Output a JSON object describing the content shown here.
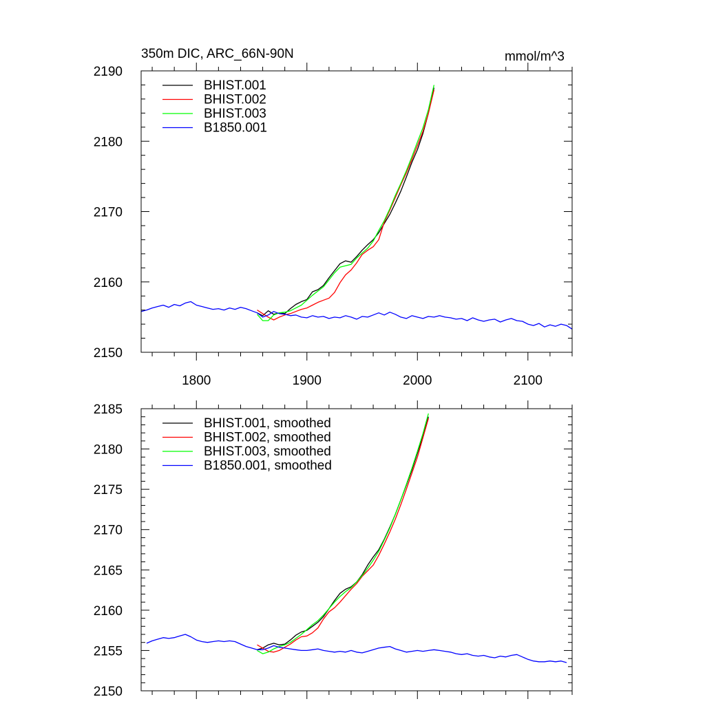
{
  "chart_data": [
    {
      "type": "line",
      "title": "350m DIC, ARC_66N-90N",
      "units": "mmol/m^3",
      "xlabel": "",
      "ylabel": "",
      "xlim": [
        1750,
        2140
      ],
      "ylim": [
        2150,
        2190
      ],
      "xticks": [
        1800,
        1900,
        2000,
        2100
      ],
      "yticks": [
        2150,
        2160,
        2170,
        2180,
        2190
      ],
      "legend_position": "top-left",
      "grid": false,
      "series": [
        {
          "name": "BHIST.001",
          "color": "#000000",
          "x": [
            1855,
            1860,
            1865,
            1870,
            1875,
            1880,
            1885,
            1890,
            1895,
            1900,
            1905,
            1910,
            1915,
            1920,
            1925,
            1930,
            1935,
            1940,
            1945,
            1950,
            1955,
            1960,
            1965,
            1970,
            1975,
            1980,
            1985,
            1990,
            1995,
            2000,
            2005,
            2010,
            2015
          ],
          "y": [
            2155.6,
            2155.2,
            2155.9,
            2155.4,
            2155.6,
            2155.5,
            2156.2,
            2156.8,
            2157.2,
            2157.5,
            2158.6,
            2158.9,
            2159.5,
            2160.6,
            2161.6,
            2162.6,
            2163.0,
            2162.8,
            2163.6,
            2164.5,
            2165.3,
            2166.0,
            2167.0,
            2168.3,
            2169.6,
            2171.2,
            2172.9,
            2174.9,
            2177.0,
            2178.8,
            2181.1,
            2184.0,
            2187.6
          ]
        },
        {
          "name": "BHIST.002",
          "color": "#ff0000",
          "x": [
            1855,
            1860,
            1865,
            1870,
            1875,
            1880,
            1885,
            1890,
            1895,
            1900,
            1905,
            1910,
            1915,
            1920,
            1925,
            1930,
            1935,
            1940,
            1945,
            1950,
            1955,
            1960,
            1965,
            1970,
            1975,
            1980,
            1985,
            1990,
            1995,
            2000,
            2005,
            2010,
            2015
          ],
          "y": [
            2156.0,
            2155.5,
            2155.0,
            2154.6,
            2155.0,
            2155.3,
            2155.5,
            2155.8,
            2156.1,
            2156.3,
            2156.7,
            2157.1,
            2157.4,
            2157.7,
            2158.5,
            2159.9,
            2161.0,
            2161.7,
            2162.7,
            2163.9,
            2164.5,
            2165.0,
            2166.0,
            2168.5,
            2170.2,
            2172.0,
            2173.8,
            2175.5,
            2177.4,
            2179.4,
            2181.4,
            2184.0,
            2187.3
          ]
        },
        {
          "name": "BHIST.003",
          "color": "#00ff00",
          "x": [
            1855,
            1860,
            1865,
            1870,
            1875,
            1880,
            1885,
            1890,
            1895,
            1900,
            1905,
            1910,
            1915,
            1920,
            1925,
            1930,
            1935,
            1940,
            1945,
            1950,
            1955,
            1960,
            1965,
            1970,
            1975,
            1980,
            1985,
            1990,
            1995,
            2000,
            2005,
            2010,
            2015
          ],
          "y": [
            2155.4,
            2154.5,
            2154.5,
            2155.3,
            2155.6,
            2155.7,
            2155.9,
            2156.3,
            2156.7,
            2157.4,
            2158.1,
            2158.7,
            2159.3,
            2160.3,
            2161.3,
            2162.1,
            2162.3,
            2162.5,
            2163.4,
            2164.1,
            2164.8,
            2165.8,
            2167.3,
            2168.7,
            2170.4,
            2172.3,
            2174.0,
            2175.8,
            2177.8,
            2179.9,
            2181.9,
            2184.5,
            2188.0
          ]
        },
        {
          "name": "B1850.001",
          "color": "#0000ff",
          "x": [
            1750,
            1755,
            1760,
            1765,
            1770,
            1775,
            1780,
            1785,
            1790,
            1795,
            1800,
            1805,
            1810,
            1815,
            1820,
            1825,
            1830,
            1835,
            1840,
            1845,
            1850,
            1855,
            1860,
            1865,
            1870,
            1875,
            1880,
            1885,
            1890,
            1895,
            1900,
            1905,
            1910,
            1915,
            1920,
            1925,
            1930,
            1935,
            1940,
            1945,
            1950,
            1955,
            1960,
            1965,
            1970,
            1975,
            1980,
            1985,
            1990,
            1995,
            2000,
            2005,
            2010,
            2015,
            2020,
            2025,
            2030,
            2035,
            2040,
            2045,
            2050,
            2055,
            2060,
            2065,
            2070,
            2075,
            2080,
            2085,
            2090,
            2095,
            2100,
            2105,
            2110,
            2115,
            2120,
            2125,
            2130,
            2135,
            2140
          ],
          "y": [
            2155.8,
            2156.0,
            2156.3,
            2156.5,
            2156.7,
            2156.4,
            2156.8,
            2156.6,
            2157.0,
            2157.2,
            2156.7,
            2156.5,
            2156.3,
            2156.1,
            2156.2,
            2156.0,
            2156.3,
            2156.1,
            2156.4,
            2156.2,
            2155.9,
            2155.6,
            2155.0,
            2155.3,
            2155.8,
            2155.5,
            2155.4,
            2155.2,
            2155.3,
            2155.0,
            2154.9,
            2155.2,
            2155.0,
            2155.1,
            2154.8,
            2155.0,
            2154.9,
            2155.2,
            2155.0,
            2154.7,
            2155.1,
            2155.0,
            2155.3,
            2155.6,
            2155.3,
            2155.7,
            2155.4,
            2155.0,
            2154.8,
            2155.2,
            2155.0,
            2154.8,
            2155.1,
            2155.0,
            2155.2,
            2155.0,
            2154.9,
            2154.7,
            2154.8,
            2154.5,
            2154.9,
            2154.6,
            2154.4,
            2154.6,
            2154.7,
            2154.3,
            2154.6,
            2154.8,
            2154.5,
            2154.4,
            2154.0,
            2153.8,
            2154.1,
            2153.6,
            2153.9,
            2153.7,
            2154.0,
            2153.8,
            2153.3
          ]
        }
      ]
    },
    {
      "type": "line",
      "title": "",
      "xlabel": "",
      "ylabel": "",
      "xlim": [
        1750,
        2140
      ],
      "ylim": [
        2150,
        2185
      ],
      "xticks": [
        1800,
        1900,
        2000,
        2100
      ],
      "yticks": [
        2150,
        2155,
        2160,
        2165,
        2170,
        2175,
        2180,
        2185
      ],
      "legend_position": "top-left",
      "grid": false,
      "series": [
        {
          "name": "BHIST.001, smoothed",
          "color": "#000000",
          "x": [
            1855,
            1860,
            1865,
            1870,
            1875,
            1880,
            1885,
            1890,
            1895,
            1900,
            1905,
            1910,
            1915,
            1920,
            1925,
            1930,
            1935,
            1940,
            1945,
            1950,
            1955,
            1960,
            1965,
            1970,
            1975,
            1980,
            1985,
            1990,
            1995,
            2000,
            2005,
            2010
          ],
          "y": [
            2155.1,
            2155.3,
            2155.7,
            2155.9,
            2155.7,
            2155.8,
            2156.3,
            2156.9,
            2157.3,
            2157.5,
            2158.0,
            2158.5,
            2159.2,
            2160.2,
            2161.2,
            2162.1,
            2162.6,
            2162.9,
            2163.5,
            2164.4,
            2165.6,
            2166.6,
            2167.5,
            2168.8,
            2170.3,
            2171.9,
            2173.7,
            2175.5,
            2177.4,
            2179.5,
            2181.6,
            2184.0
          ]
        },
        {
          "name": "BHIST.002, smoothed",
          "color": "#ff0000",
          "x": [
            1855,
            1860,
            1865,
            1870,
            1875,
            1880,
            1885,
            1890,
            1895,
            1900,
            1905,
            1910,
            1915,
            1920,
            1925,
            1930,
            1935,
            1940,
            1945,
            1950,
            1955,
            1960,
            1965,
            1970,
            1975,
            1980,
            1985,
            1990,
            1995,
            2000,
            2005,
            2010
          ],
          "y": [
            2155.7,
            2155.3,
            2154.9,
            2154.8,
            2155.0,
            2155.4,
            2155.8,
            2156.3,
            2156.7,
            2156.8,
            2157.2,
            2157.8,
            2158.9,
            2159.8,
            2160.3,
            2161.0,
            2161.8,
            2162.6,
            2163.3,
            2164.2,
            2164.9,
            2165.6,
            2166.8,
            2168.2,
            2169.7,
            2171.3,
            2173.1,
            2175.0,
            2177.0,
            2179.0,
            2181.4,
            2183.8
          ]
        },
        {
          "name": "BHIST.003, smoothed",
          "color": "#00ff00",
          "x": [
            1855,
            1860,
            1865,
            1870,
            1875,
            1880,
            1885,
            1890,
            1895,
            1900,
            1905,
            1910,
            1915,
            1920,
            1925,
            1930,
            1935,
            1940,
            1945,
            1950,
            1955,
            1960,
            1965,
            1970,
            1975,
            1980,
            1985,
            1990,
            1995,
            2000,
            2005,
            2010
          ],
          "y": [
            2155.0,
            2154.6,
            2154.8,
            2155.2,
            2155.5,
            2155.7,
            2156.0,
            2156.5,
            2157.0,
            2157.6,
            2158.2,
            2158.7,
            2159.4,
            2160.2,
            2161.0,
            2161.7,
            2162.3,
            2162.8,
            2163.5,
            2164.3,
            2165.2,
            2166.2,
            2167.3,
            2168.7,
            2170.2,
            2171.9,
            2173.7,
            2175.6,
            2177.6,
            2179.7,
            2181.9,
            2184.4
          ]
        },
        {
          "name": "B1850.001, smoothed",
          "color": "#0000ff",
          "x": [
            1755,
            1760,
            1765,
            1770,
            1775,
            1780,
            1785,
            1790,
            1795,
            1800,
            1805,
            1810,
            1815,
            1820,
            1825,
            1830,
            1835,
            1840,
            1845,
            1850,
            1855,
            1860,
            1865,
            1870,
            1875,
            1880,
            1885,
            1890,
            1895,
            1900,
            1905,
            1910,
            1915,
            1920,
            1925,
            1930,
            1935,
            1940,
            1945,
            1950,
            1955,
            1960,
            1965,
            1970,
            1975,
            1980,
            1985,
            1990,
            1995,
            2000,
            2005,
            2010,
            2015,
            2020,
            2025,
            2030,
            2035,
            2040,
            2045,
            2050,
            2055,
            2060,
            2065,
            2070,
            2075,
            2080,
            2085,
            2090,
            2095,
            2100,
            2105,
            2110,
            2115,
            2120,
            2125,
            2130,
            2135
          ],
          "y": [
            2155.9,
            2156.2,
            2156.4,
            2156.6,
            2156.5,
            2156.6,
            2156.8,
            2157.0,
            2156.7,
            2156.3,
            2156.1,
            2156.0,
            2156.1,
            2156.2,
            2156.1,
            2156.2,
            2156.1,
            2155.8,
            2155.5,
            2155.3,
            2155.1,
            2155.1,
            2155.3,
            2155.6,
            2155.4,
            2155.3,
            2155.2,
            2155.1,
            2155.0,
            2155.0,
            2155.1,
            2155.2,
            2155.0,
            2154.9,
            2154.8,
            2154.9,
            2154.8,
            2155.0,
            2154.8,
            2154.7,
            2154.9,
            2155.1,
            2155.3,
            2155.4,
            2155.5,
            2155.2,
            2155.0,
            2154.8,
            2154.9,
            2155.0,
            2154.9,
            2155.0,
            2155.1,
            2155.0,
            2154.9,
            2154.8,
            2154.6,
            2154.5,
            2154.6,
            2154.4,
            2154.3,
            2154.4,
            2154.2,
            2154.1,
            2154.3,
            2154.2,
            2154.4,
            2154.5,
            2154.2,
            2153.9,
            2153.7,
            2153.6,
            2153.6,
            2153.7,
            2153.6,
            2153.7,
            2153.5
          ]
        }
      ]
    }
  ]
}
